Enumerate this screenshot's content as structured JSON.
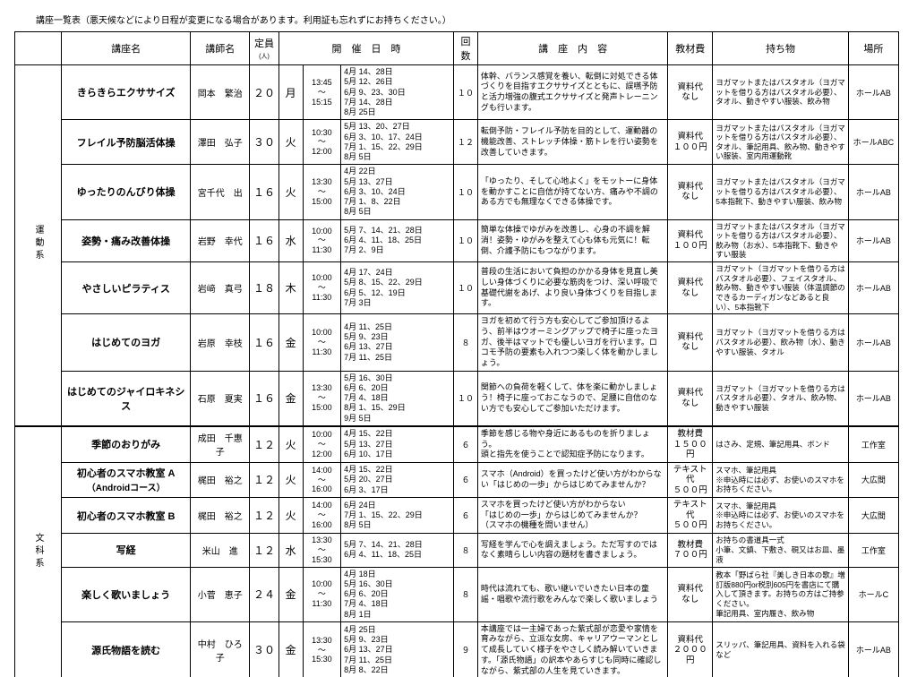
{
  "note": "講座一覧表（悪天候などにより日程が変更になる場合があります。利用証も忘れずにお持ちください。）",
  "headers": {
    "name": "講座名",
    "instructor": "講師名",
    "capacity": "定員",
    "capacity_sub": "(人)",
    "schedule": "開　催　日　時",
    "count": "回数",
    "content": "講　座　内　容",
    "fee": "教材費",
    "bring": "持ち物",
    "place": "場所"
  },
  "categories": [
    {
      "label": "運動系",
      "rows": [
        {
          "name": "きらきらエクササイズ",
          "instr": "岡本　繁治",
          "cap": "２０",
          "day": "月",
          "time": "13:45\n～\n15:15",
          "dates": "4月 14、28日\n5月 12、26日\n6月 9、23、30日\n7月 14、28日\n8月 25日",
          "cnt": "１０",
          "content": "体幹、バランス感覚を養い、転倒に対処できる体づくりを目指すエクササイズとともに、誤嚥予防と活力増強の腹式エクササイズと発声トレーニングも行います。",
          "fee": "資料代\nなし",
          "bring": "ヨガマットまたはバスタオル（ヨガマットを借りる方はバスタオル必要）、タオル、動きやすい服装、飲み物",
          "place": "ホールAB"
        },
        {
          "name": "フレイル予防脳活体操",
          "instr": "澤田　弘子",
          "cap": "３０",
          "day": "火",
          "time": "10:30\n～\n12:00",
          "dates": "5月 13、20、27日\n6月 3、10、17、24日\n7月 1、15、22、29日\n8月 5日",
          "cnt": "１２",
          "content": "転倒予防・フレイル予防を目的として、運動器の機能改善、ストレッチ体操・筋トレを行い姿勢を改善していきます。",
          "fee": "資料代\n１００円",
          "bring": "ヨガマットまたはバスタオル（ヨガマットを借りる方はバスタオル必要）、タオル、筆記用具、飲み物、動きやすい服装、室内用運動靴",
          "place": "ホールABC"
        },
        {
          "name": "ゆったりのんびり体操",
          "instr": "宮千代　出",
          "cap": "１６",
          "day": "火",
          "time": "13:30\n～\n15:00",
          "dates": "4月 22日\n5月 13、27日\n6月 3、10、24日\n7月 1、8、22日\n8月 5日",
          "cnt": "１０",
          "content": "「ゆったり、そして心地よく」をモットーに身体を動かすことに自信が持てない方、痛みや不調のある方でも無理なくできる体操です。",
          "fee": "資料代\nなし",
          "bring": "ヨガマットまたはバスタオル（ヨガマットを借りる方はバスタオル必要）、5本指靴下、動きやすい服装、飲み物",
          "place": "ホールAB"
        },
        {
          "name": "姿勢・痛み改善体操",
          "instr": "岩野　幸代",
          "cap": "１６",
          "day": "水",
          "time": "10:00\n～\n11:30",
          "dates": "5月 7、14、21、28日\n6月 4、11、18、25日\n7月 2、9日",
          "cnt": "１０",
          "content": "簡単な体操でゆがみを改善し、心身の不調を解消！姿勢・ゆがみを整えて心も体も元気に！転倒、介護予防にもつながります。",
          "fee": "資料代\n１００円",
          "bring": "ヨガマットまたはバスタオル（ヨガマットを借りる方はバスタオル必要）、飲み物（お水）、5本指靴下、動きやすい服装",
          "place": "ホールAB"
        },
        {
          "name": "やさしいピラティス",
          "instr": "岩﨑　真弓",
          "cap": "１８",
          "day": "木",
          "time": "10:00\n～\n11:30",
          "dates": "4月 17、24日\n5月 8、15、22、29日\n6月 5、12、19日\n7月 3日",
          "cnt": "１０",
          "content": "普段の生活において負担のかかる身体を見直し美しい身体づくりに必要な筋肉をつけ、深い呼吸で基礎代謝をあげ、より良い身体づくりを目指します。",
          "fee": "資料代\nなし",
          "bring": "ヨガマット（ヨガマットを借りる方はバスタオル必要）、フェイスタオル、飲み物、動きやすい服装（体温調節のできるカーディガンなどあると良い）、5本指靴下",
          "place": "ホールAB"
        },
        {
          "name": "はじめてのヨガ",
          "instr": "岩原　幸枝",
          "cap": "１６",
          "day": "金",
          "time": "10:00\n～\n11:30",
          "dates": "4月 11、25日\n5月 9、23日\n6月 13、27日\n7月 11、25日",
          "cnt": "８",
          "content": "ヨガを初めて行う方も安心してご参加頂けるよう、前半はウオーミングアップで椅子に座ったヨガ、後半はマットでも優しいヨガを行います。ロコモ予防の要素も入れつつ楽しく体を動かしましょう。",
          "fee": "資料代\nなし",
          "bring": "ヨガマット（ヨガマットを借りる方はバスタオル必要）、飲み物（水）、動きやすい服装、タオル",
          "place": "ホールAB"
        },
        {
          "name": "はじめてのジャイロキネシス",
          "instr": "石原　夏実",
          "cap": "１６",
          "day": "金",
          "time": "13:30\n～\n15:00",
          "dates": "5月 16、30日\n6月 6、20日\n7月 4、18日\n8月 1、15、29日\n9月 5日",
          "cnt": "１０",
          "content": "関節への負荷を軽くして、体を楽に動かしましょう！椅子に座っておこなうので、足腰に自信のない方でも安心してご参加いただけます。",
          "fee": "資料代\nなし",
          "bring": "ヨガマット（ヨガマットを借りる方はバスタオル必要）、タオル、飲み物、動きやすい服装",
          "place": "ホールAB"
        }
      ]
    },
    {
      "label": "文科系",
      "rows": [
        {
          "name": "季節のおりがみ",
          "instr": "成田　千惠子",
          "cap": "１２",
          "day": "火",
          "time": "10:00\n～\n12:00",
          "dates": "4月 15、22日\n5月 13、27日\n6月 10、17日",
          "cnt": "６",
          "content": "季節を感じる物や身近にあるものを折りましょう。\n頭と指先を使うことで認知症予防になります。",
          "fee": "教材費\n１５００円",
          "bring": "はさみ、定規、筆記用具、ボンド",
          "place": "工作室"
        },
        {
          "name": "初心者のスマホ教室 A",
          "sub": "（Androidコース）",
          "instr": "梶田　裕之",
          "cap": "１２",
          "day": "火",
          "time": "14:00\n～\n16:00",
          "dates": "4月 15、22日\n5月 20、27日\n6月 3、17日",
          "cnt": "６",
          "content": "スマホ（Android）を買ったけど使い方がわからない「はじめの一歩」からはじめてみませんか？",
          "fee": "テキスト代\n５００円",
          "bring": "スマホ、筆記用具\n※申込時には必ず、お使いのスマホをお持ちください。",
          "place": "大広間"
        },
        {
          "name": "初心者のスマホ教室 B",
          "instr": "梶田　裕之",
          "cap": "１２",
          "day": "火",
          "time": "14:00\n～\n16:00",
          "dates": "6月 24日\n7月 1、15、22、29日\n8月 5日",
          "cnt": "６",
          "content": "スマホを買ったけど使い方がわからない\n「はじめの一歩」からはじめてみませんか？\n（スマホの機種を問いません）",
          "fee": "テキスト代\n５００円",
          "bring": "スマホ、筆記用具\n※申込時には必ず、お使いのスマホをお持ちください。",
          "place": "大広間"
        },
        {
          "name": "写経",
          "instr": "米山　進",
          "cap": "１２",
          "day": "水",
          "time": "13:30\n～\n15:30",
          "dates": "5月 7、14、21、28日\n6月 4、11、18、25日",
          "cnt": "８",
          "content": "写経を学んで心を調えましょう。ただ写すのではなく素晴らしい内容の題材を書きましょう。",
          "fee": "教材費\n７００円",
          "bring": "お持ちの書道具一式\n小筆、文鎮、下敷き、硯又はお皿、墨液",
          "place": "工作室"
        },
        {
          "name": "楽しく歌いましょう",
          "instr": "小菅　恵子",
          "cap": "２４",
          "day": "金",
          "time": "10:00\n～\n11:30",
          "dates": "4月 18日\n5月 16、30日\n6月 6、20日\n7月 4、18日\n8月 1日",
          "cnt": "８",
          "content": "時代は流れても、歌い継いでいきたい日本の童謡・唱歌や流行歌をみんなで楽しく歌いましょう",
          "fee": "資料代\nなし",
          "bring": "教本「野ばら社『美しき日本の歌』増訂版880円or税別605円を書店にて購入して頂きます。お持ちの方はご持参ください。\n筆記用具、室内履き、飲み物",
          "place": "ホールC"
        },
        {
          "name": "源氏物語を読む",
          "instr": "中村　ひろ子",
          "cap": "３０",
          "day": "金",
          "time": "13:30\n～\n15:30",
          "dates": "4月 25日\n5月 9、23日\n6月 13、27日\n7月 11、25日\n8月 8、22日",
          "cnt": "９",
          "content": "本講座では一主婦であった紫式部が恋愛や家情を育みながら、立派な女房、キャリアウーマンとして成長していく様子をやさしく読み解いていきます。「源氏物語」の訳本やあらすじも同時に確認しながら、紫式部の人生を見ていきます。",
          "fee": "資料代\n２０００円",
          "bring": "スリッパ、筆記用具、資料を入れる袋など",
          "place": "ホールAB"
        }
      ]
    }
  ]
}
